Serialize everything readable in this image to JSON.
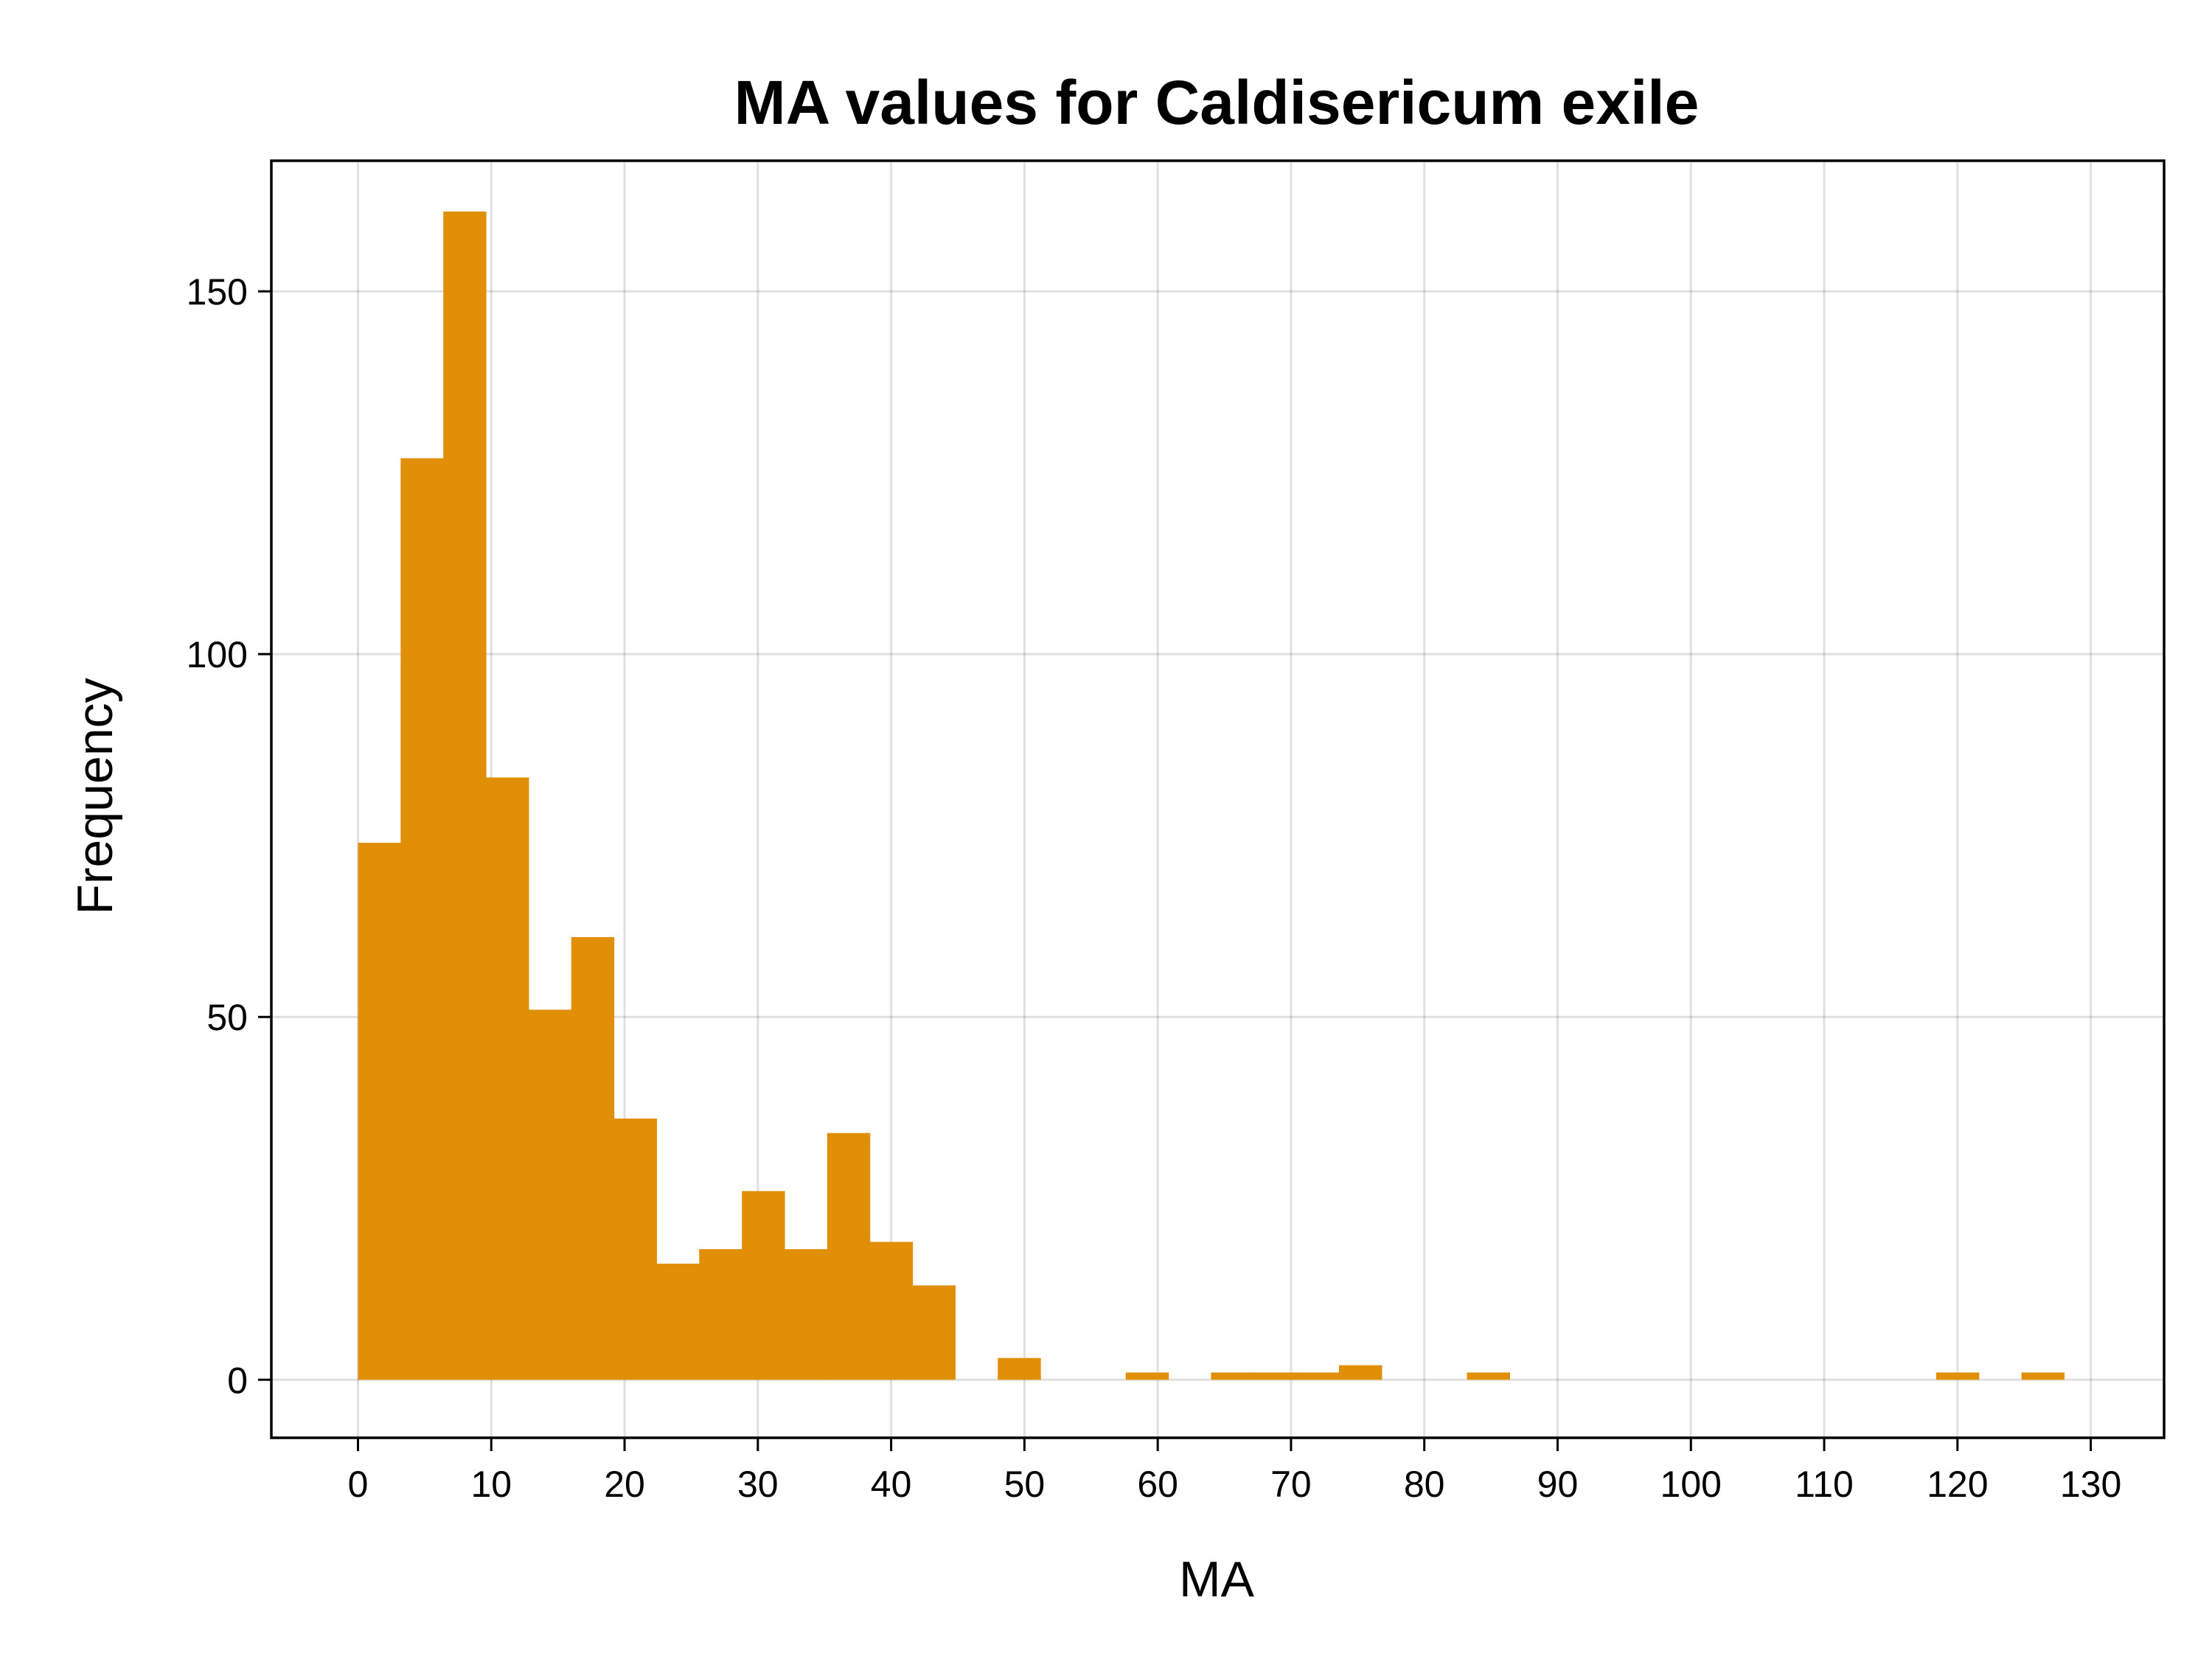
{
  "chart_data": {
    "type": "bar",
    "title": "MA values for Caldisericum exile",
    "xlabel": "MA",
    "ylabel": "Frequency",
    "bin_width": 3.2,
    "bin_start": 0,
    "bins": [
      {
        "x0": 0.0,
        "x1": 3.2,
        "count": 74
      },
      {
        "x0": 3.2,
        "x1": 6.4,
        "count": 127
      },
      {
        "x0": 6.4,
        "x1": 9.6,
        "count": 161
      },
      {
        "x0": 9.6,
        "x1": 12.8,
        "count": 83
      },
      {
        "x0": 12.8,
        "x1": 16.0,
        "count": 51
      },
      {
        "x0": 16.0,
        "x1": 19.2,
        "count": 61
      },
      {
        "x0": 19.2,
        "x1": 22.4,
        "count": 36
      },
      {
        "x0": 22.4,
        "x1": 25.6,
        "count": 16
      },
      {
        "x0": 25.6,
        "x1": 28.8,
        "count": 18
      },
      {
        "x0": 28.8,
        "x1": 32.0,
        "count": 26
      },
      {
        "x0": 32.0,
        "x1": 35.2,
        "count": 18
      },
      {
        "x0": 35.2,
        "x1": 38.4,
        "count": 34
      },
      {
        "x0": 38.4,
        "x1": 41.6,
        "count": 19
      },
      {
        "x0": 41.6,
        "x1": 44.8,
        "count": 13
      },
      {
        "x0": 48.0,
        "x1": 51.2,
        "count": 3
      },
      {
        "x0": 57.6,
        "x1": 60.8,
        "count": 1
      },
      {
        "x0": 64.0,
        "x1": 67.2,
        "count": 1
      },
      {
        "x0": 67.2,
        "x1": 70.4,
        "count": 1
      },
      {
        "x0": 70.4,
        "x1": 73.6,
        "count": 1
      },
      {
        "x0": 73.6,
        "x1": 76.8,
        "count": 2
      },
      {
        "x0": 83.2,
        "x1": 86.4,
        "count": 1
      },
      {
        "x0": 118.4,
        "x1": 121.6,
        "count": 1
      },
      {
        "x0": 124.8,
        "x1": 128.0,
        "count": 1
      }
    ],
    "xlim": [
      -6.5,
      135.5
    ],
    "ylim": [
      -8,
      168
    ],
    "x_ticks": [
      0,
      10,
      20,
      30,
      40,
      50,
      60,
      70,
      80,
      90,
      100,
      110,
      120,
      130
    ],
    "y_ticks": [
      0,
      50,
      100,
      150
    ],
    "grid": true,
    "legend": "none",
    "colors": {
      "bar": "#E08F06",
      "frame": "#000000",
      "background": "#FFFFFF"
    }
  }
}
